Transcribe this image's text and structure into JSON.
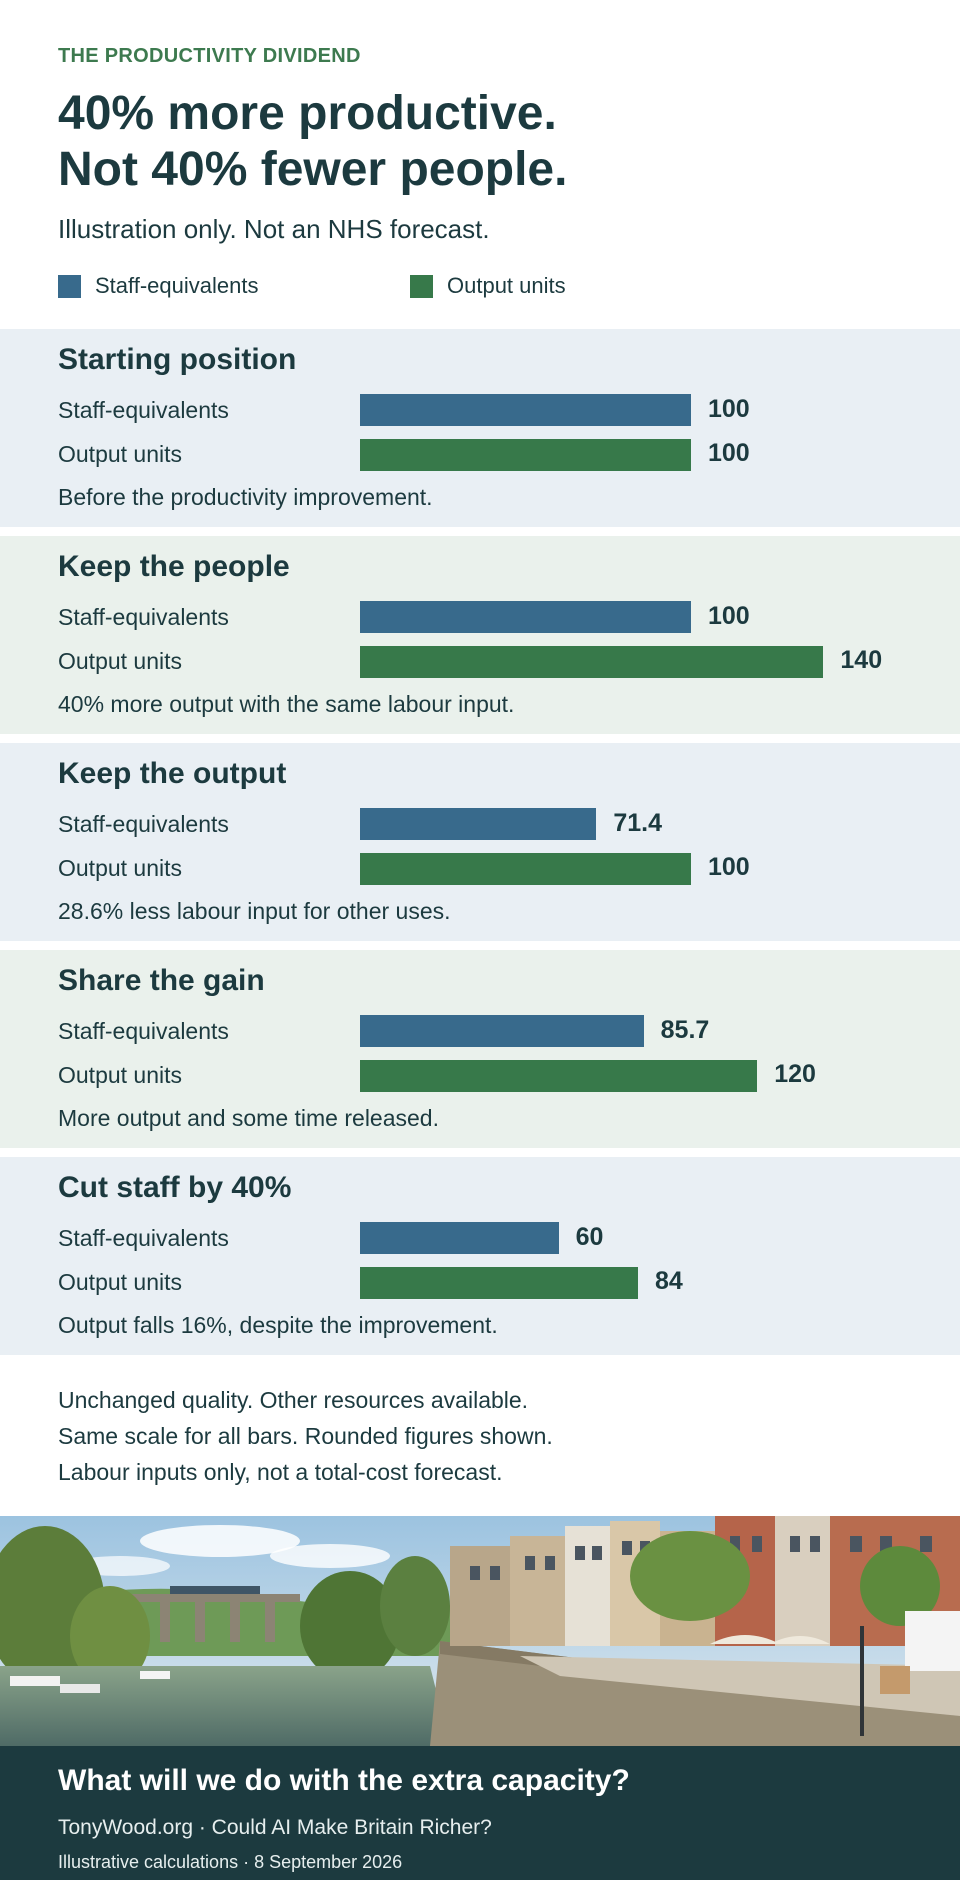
{
  "kicker": "THE PRODUCTIVITY DIVIDEND",
  "title_line1": "40% more productive.",
  "title_line2": "Not 40% fewer people.",
  "subtitle": "Illustration only. Not an NHS forecast.",
  "colors": {
    "staff": "#386a8c",
    "output": "#37794a",
    "panel_blue": "#e9eff4",
    "panel_green": "#eaf1ec",
    "dark": "#1c3a3f"
  },
  "chart_data": {
    "type": "bar",
    "orientation": "horizontal",
    "scale": "same scale for all bars",
    "legend": [
      {
        "name": "Staff-equivalents",
        "color": "#386a8c"
      },
      {
        "name": "Output units",
        "color": "#37794a"
      }
    ],
    "series_names": [
      "Staff-equivalents",
      "Output units"
    ],
    "panels": [
      {
        "title": "Starting position",
        "staff_label": "Staff-equivalents",
        "output_label": "Output units",
        "staff": 100,
        "staff_text": "100",
        "output": 100,
        "output_text": "100",
        "note": "Before the productivity improvement."
      },
      {
        "title": "Keep the people",
        "staff_label": "Staff-equivalents",
        "output_label": "Output units",
        "staff": 100,
        "staff_text": "100",
        "output": 140,
        "output_text": "140",
        "note": "40% more output with the same labour input."
      },
      {
        "title": "Keep the output",
        "staff_label": "Staff-equivalents",
        "output_label": "Output units",
        "staff": 71.4,
        "staff_text": "71.4",
        "output": 100,
        "output_text": "100",
        "note": "28.6% less labour input for other uses."
      },
      {
        "title": "Share the gain",
        "staff_label": "Staff-equivalents",
        "output_label": "Output units",
        "staff": 85.7,
        "staff_text": "85.7",
        "output": 120,
        "output_text": "120",
        "note": "More output and some time released."
      },
      {
        "title": "Cut staff by 40%",
        "staff_label": "Staff-equivalents",
        "output_label": "Output units",
        "staff": 60,
        "staff_text": "60",
        "output": 84,
        "output_text": "84",
        "note": "Output falls 16%, despite the improvement."
      }
    ]
  },
  "notes": [
    "Unchanged quality. Other resources available.",
    "Same scale for all bars. Rounded figures shown.",
    "Labour inputs only, not a total-cost forecast."
  ],
  "footer": {
    "question": "What will we do with the extra capacity?",
    "source": "TonyWood.org · Could AI Make Britain Richer?",
    "date": "Illustrative calculations · 8 September 2026"
  }
}
